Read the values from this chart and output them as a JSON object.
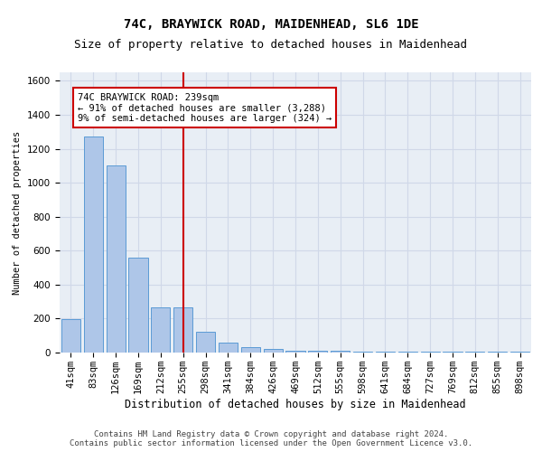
{
  "title1": "74C, BRAYWICK ROAD, MAIDENHEAD, SL6 1DE",
  "title2": "Size of property relative to detached houses in Maidenhead",
  "xlabel": "Distribution of detached houses by size in Maidenhead",
  "ylabel": "Number of detached properties",
  "categories": [
    "41sqm",
    "83sqm",
    "126sqm",
    "169sqm",
    "212sqm",
    "255sqm",
    "298sqm",
    "341sqm",
    "384sqm",
    "426sqm",
    "469sqm",
    "512sqm",
    "555sqm",
    "598sqm",
    "641sqm",
    "684sqm",
    "727sqm",
    "769sqm",
    "812sqm",
    "855sqm",
    "898sqm"
  ],
  "values": [
    195,
    1270,
    1100,
    560,
    265,
    265,
    120,
    60,
    32,
    22,
    12,
    10,
    8,
    6,
    5,
    4,
    4,
    3,
    3,
    3,
    3
  ],
  "bar_color": "#aec6e8",
  "bar_edge_color": "#5b9bd5",
  "vline_x_index": 5,
  "vline_color": "#cc0000",
  "annotation_text": "74C BRAYWICK ROAD: 239sqm\n← 91% of detached houses are smaller (3,288)\n9% of semi-detached houses are larger (324) →",
  "annotation_box_color": "#ffffff",
  "annotation_box_edge_color": "#cc0000",
  "ylim": [
    0,
    1650
  ],
  "yticks": [
    0,
    200,
    400,
    600,
    800,
    1000,
    1200,
    1400,
    1600
  ],
  "grid_color": "#d0d8e8",
  "background_color": "#e8eef5",
  "footer_text": "Contains HM Land Registry data © Crown copyright and database right 2024.\nContains public sector information licensed under the Open Government Licence v3.0.",
  "title1_fontsize": 10,
  "title2_fontsize": 9,
  "xlabel_fontsize": 8.5,
  "ylabel_fontsize": 7.5,
  "tick_fontsize": 7.5,
  "annotation_fontsize": 7.5,
  "footer_fontsize": 6.5
}
